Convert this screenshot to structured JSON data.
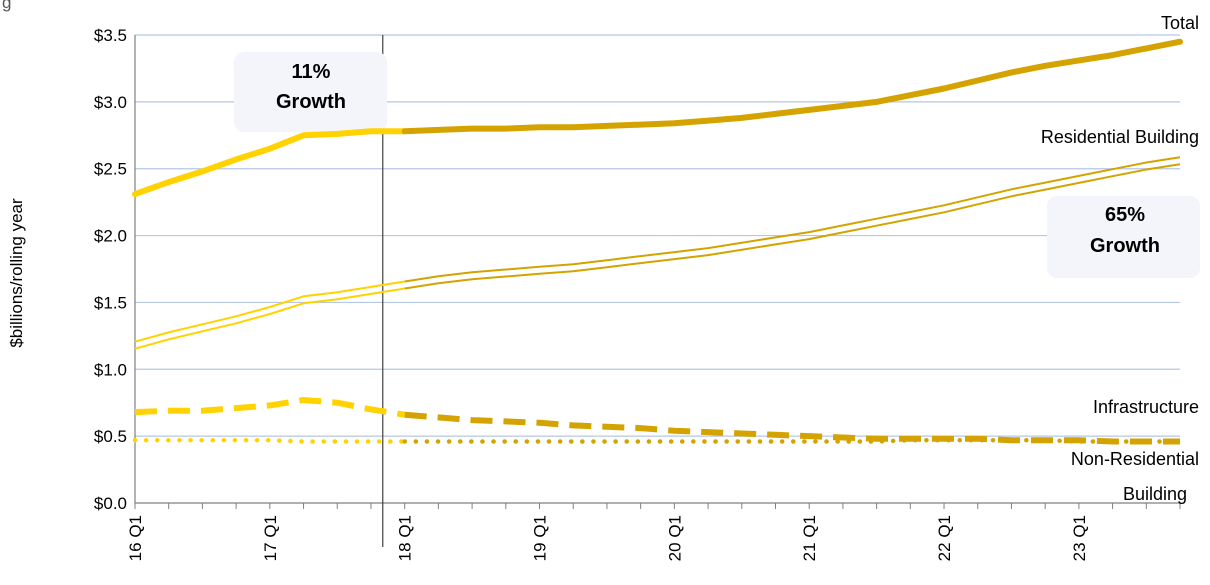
{
  "page": {
    "top_caption": "g"
  },
  "chart_data": {
    "type": "line",
    "title": "",
    "ylabel": "$billions/rolling year",
    "xlabel": "",
    "ylim": [
      0,
      3.5
    ],
    "grid": true,
    "y_ticks": [
      "$0.0",
      "$0.5",
      "$1.0",
      "$1.5",
      "$2.0",
      "$2.5",
      "$3.0",
      "$3.5"
    ],
    "y_tick_values": [
      0,
      0.5,
      1.0,
      1.5,
      2.0,
      2.5,
      3.0,
      3.5
    ],
    "x": [
      "16 Q1",
      "16 Q2",
      "16 Q3",
      "16 Q4",
      "17 Q1",
      "17 Q2",
      "17 Q3",
      "17 Q4",
      "18 Q1",
      "18 Q2",
      "18 Q3",
      "18 Q4",
      "19 Q1",
      "19 Q2",
      "19 Q3",
      "19 Q4",
      "20 Q1",
      "20 Q2",
      "20 Q3",
      "20 Q4",
      "21 Q1",
      "21 Q2",
      "21 Q3",
      "21 Q4",
      "22 Q1",
      "22 Q2",
      "22 Q3",
      "22 Q4",
      "23 Q1",
      "23 Q2",
      "23 Q3",
      "23 Q4"
    ],
    "x_tick_labels": [
      "16 Q1",
      "17 Q1",
      "18 Q1",
      "19 Q1",
      "20 Q1",
      "21 Q1",
      "22 Q1",
      "23 Q1"
    ],
    "x_tick_label_indices": [
      0,
      4,
      8,
      12,
      16,
      20,
      24,
      28
    ],
    "divider_index": 7,
    "series": [
      {
        "name": "Total",
        "style": "thick",
        "values": [
          2.31,
          2.4,
          2.48,
          2.57,
          2.65,
          2.75,
          2.76,
          2.78,
          2.78,
          2.79,
          2.8,
          2.8,
          2.81,
          2.81,
          2.82,
          2.83,
          2.84,
          2.86,
          2.88,
          2.91,
          2.94,
          2.97,
          3.0,
          3.05,
          3.1,
          3.16,
          3.22,
          3.27,
          3.31,
          3.35,
          3.4,
          3.45
        ]
      },
      {
        "name": "Residential Building",
        "style": "double",
        "values": [
          1.18,
          1.25,
          1.31,
          1.37,
          1.44,
          1.52,
          1.55,
          1.59,
          1.63,
          1.67,
          1.7,
          1.72,
          1.74,
          1.76,
          1.79,
          1.82,
          1.85,
          1.88,
          1.92,
          1.96,
          2.0,
          2.05,
          2.1,
          2.15,
          2.2,
          2.26,
          2.32,
          2.37,
          2.42,
          2.47,
          2.52,
          2.56
        ]
      },
      {
        "name": "Infrastructure",
        "style": "dashed",
        "values": [
          0.68,
          0.69,
          0.69,
          0.71,
          0.73,
          0.77,
          0.75,
          0.7,
          0.66,
          0.64,
          0.62,
          0.61,
          0.6,
          0.58,
          0.57,
          0.56,
          0.54,
          0.53,
          0.52,
          0.51,
          0.5,
          0.49,
          0.48,
          0.48,
          0.48,
          0.48,
          0.47,
          0.47,
          0.47,
          0.46,
          0.46,
          0.46
        ]
      },
      {
        "name": "Non-Residential Building",
        "style": "dotted",
        "values": [
          0.47,
          0.47,
          0.47,
          0.47,
          0.47,
          0.46,
          0.46,
          0.46,
          0.46,
          0.46,
          0.46,
          0.46,
          0.46,
          0.46,
          0.46,
          0.46,
          0.46,
          0.46,
          0.46,
          0.46,
          0.46,
          0.46,
          0.46,
          0.47,
          0.47,
          0.47,
          0.47,
          0.47,
          0.46,
          0.46,
          0.46,
          0.46
        ]
      }
    ],
    "series_labels": [
      "Total",
      "Residential Building",
      "Infrastructure",
      "Non-Residential",
      "Building"
    ],
    "annotations": [
      {
        "line1": "11%",
        "line2": "Growth"
      },
      {
        "line1": "65%",
        "line2": "Growth"
      }
    ],
    "colors": {
      "early": "#FFD200",
      "late": "#D4A300",
      "grid": "#B4C7E7",
      "axis": "#808080",
      "divider": "#404040",
      "annotation_bg": "#F3F5FB"
    }
  }
}
